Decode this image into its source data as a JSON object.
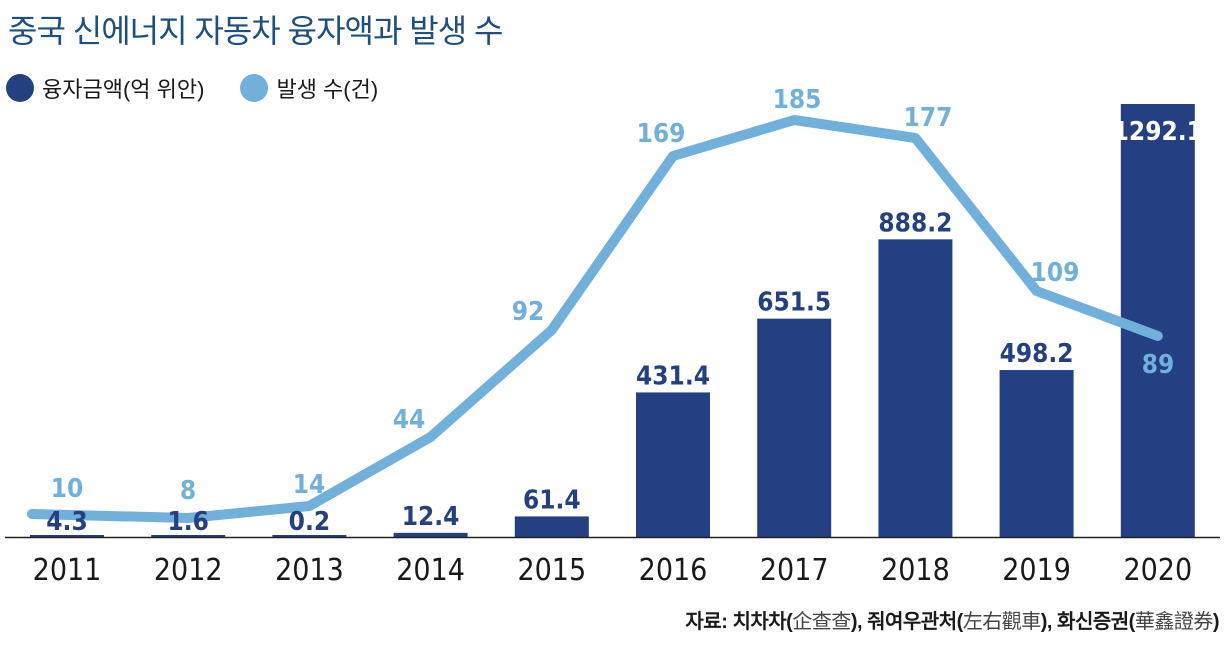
{
  "header": {
    "title": "중국 신에너지 자동차 융자액과 발생 수"
  },
  "legend": [
    {
      "label": "융자금액(억 위안)",
      "color": "#243f82",
      "icon": "circle-icon"
    },
    {
      "label": "발생 수(건)",
      "color": "#72b0dc",
      "icon": "circle-icon"
    }
  ],
  "source": {
    "prefix": "자료: ",
    "parts": [
      {
        "ko": "치차차",
        "han": "企查查"
      },
      {
        "ko": "줘여우관처",
        "han": "左右觀車"
      },
      {
        "ko": "화신증권",
        "han": "華鑫證券"
      }
    ]
  },
  "chart_data": {
    "type": "bar+line",
    "title": "중국 신에너지 자동차 융자액과 발생 수",
    "categories": [
      "2011",
      "2012",
      "2013",
      "2014",
      "2015",
      "2016",
      "2017",
      "2018",
      "2019",
      "2020"
    ],
    "series": [
      {
        "name": "융자금액(억 위안)",
        "type": "bar",
        "color": "#243f82",
        "values": [
          4.3,
          1.6,
          0.2,
          12.4,
          61.4,
          431.4,
          651.5,
          888.2,
          498.2,
          1292.1
        ],
        "labels": [
          "4.3",
          "1.6",
          "0.2",
          "12.4",
          "61.4",
          "431.4",
          "651.5",
          "888.2",
          "498.2",
          "1292.1"
        ]
      },
      {
        "name": "발생 수(건)",
        "type": "line",
        "color": "#72b0dc",
        "values": [
          10,
          8,
          14,
          44,
          92,
          169,
          185,
          177,
          109,
          89
        ],
        "labels": [
          "10",
          "8",
          "14",
          "44",
          "92",
          "169",
          "185",
          "177",
          "109",
          "89"
        ]
      }
    ],
    "xlabel": "",
    "ylabel": "",
    "bar_ylim": [
      0,
      1292.1
    ],
    "line_ylim": [
      0,
      185
    ],
    "grid": false,
    "legend_position": "top-left"
  }
}
